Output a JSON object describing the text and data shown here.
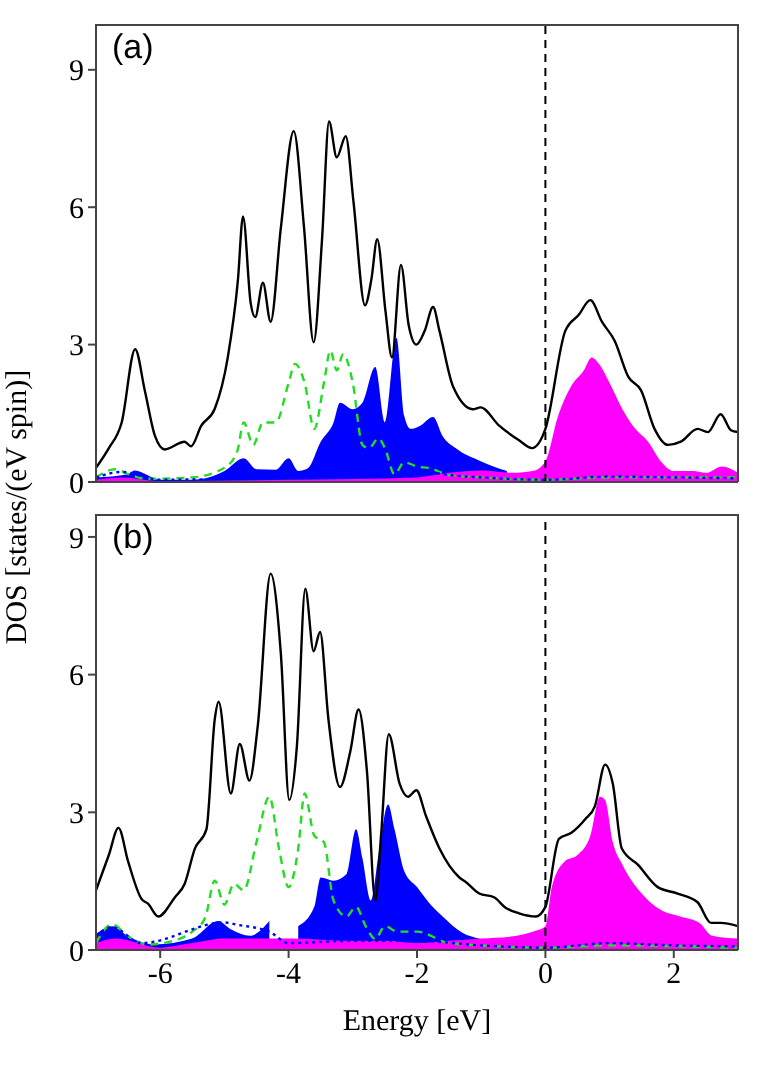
{
  "chart_data": [
    {
      "type": "line",
      "ylabel": "DOS [states/(eV spin)]",
      "annotations": [
        "(a)"
      ],
      "xlim": [
        -7,
        3
      ],
      "xticks": [
        -6,
        -4,
        -2,
        0,
        2
      ],
      "ylim": [
        0,
        10
      ],
      "yticks": [
        0,
        3,
        6,
        9
      ],
      "tick_labels": "y",
      "grid": false,
      "legend": false,
      "ref_lines": [
        {
          "axis": "x",
          "value": 0,
          "color": "#000000",
          "line_style": "dashed"
        }
      ],
      "series": [
        {
          "type": "area",
          "color": "#0000ff",
          "x": [
            -7,
            -6.5,
            -6.4,
            -6,
            -5.5,
            -5,
            -4.7,
            -4.5,
            -4.2,
            -4,
            -3.85,
            -3.7,
            -3.5,
            -3.3,
            -3.2,
            -3,
            -2.85,
            -2.65,
            -2.5,
            -2.32,
            -2.2,
            -2.1,
            -1.95,
            -1.75,
            -1.6,
            -1.4,
            -1,
            -0.6
          ],
          "values": [
            0.1,
            0.17,
            0.25,
            0.05,
            0.05,
            0.24,
            0.52,
            0.28,
            0.27,
            0.52,
            0.24,
            0.3,
            0.88,
            1.3,
            1.73,
            1.59,
            1.73,
            2.51,
            1.3,
            3.15,
            1.45,
            1.16,
            1.23,
            1.42,
            1,
            0.74,
            0.45,
            0.24
          ]
        },
        {
          "type": "area",
          "color": "#ff00ff",
          "x": [
            -7,
            -6.6,
            -6,
            -4,
            -2,
            -1.5,
            -1,
            -0.5,
            -0.2,
            0,
            0.2,
            0.4,
            0.6,
            0.72,
            0.85,
            1,
            1.2,
            1.4,
            1.6,
            1.8,
            2,
            2.3,
            2.5,
            2.75,
            3
          ],
          "values": [
            0.05,
            0.1,
            0.02,
            0.05,
            0.1,
            0.2,
            0.25,
            0.2,
            0.24,
            0.45,
            1.45,
            2.09,
            2.44,
            2.72,
            2.55,
            2.16,
            1.59,
            1.16,
            0.88,
            0.45,
            0.24,
            0.24,
            0.2,
            0.34,
            0.2
          ]
        },
        {
          "type": "line",
          "color": "#22dd22",
          "line_style": "dashed",
          "x": [
            -7,
            -6.7,
            -6.5,
            -6.2,
            -5.5,
            -5,
            -4.8,
            -4.7,
            -4.55,
            -4.4,
            -4.2,
            -4,
            -3.9,
            -3.75,
            -3.6,
            -3.45,
            -3.35,
            -3.25,
            -3.15,
            -3,
            -2.85,
            -2.75,
            -2.6,
            -2.5,
            -2.35,
            -2.2,
            -2,
            -1.8,
            -1.5,
            -1,
            0,
            1,
            3
          ],
          "values": [
            0.1,
            0.28,
            0.17,
            0.07,
            0.1,
            0.31,
            0.67,
            1.3,
            0.81,
            1.3,
            1.3,
            2.16,
            2.58,
            2.16,
            1.16,
            2.16,
            2.87,
            2.44,
            2.79,
            2.16,
            0.81,
            0.74,
            0.95,
            0.74,
            0.17,
            0.43,
            0.34,
            0.3,
            0.15,
            0.1,
            0.05,
            0.1,
            0.1
          ]
        },
        {
          "type": "line",
          "color": "#0000ff",
          "line_style": "dotted",
          "x": [
            -7,
            -6.6,
            -6,
            -4,
            -2.5,
            -2,
            -1.5,
            -1,
            0,
            1,
            2,
            3
          ],
          "values": [
            0.1,
            0.22,
            0.05,
            0.1,
            0.15,
            0.25,
            0.15,
            0.1,
            0.05,
            0.12,
            0.1,
            0.08
          ]
        },
        {
          "type": "line",
          "color": "#000000",
          "line_style": "solid",
          "x": [
            -7,
            -6.8,
            -6.6,
            -6.39,
            -6.24,
            -6.08,
            -5.93,
            -5.62,
            -5.52,
            -5.36,
            -5.15,
            -4.95,
            -4.79,
            -4.71,
            -4.59,
            -4.52,
            -4.4,
            -4.28,
            -4.12,
            -3.92,
            -3.76,
            -3.61,
            -3.48,
            -3.37,
            -3.25,
            -3.11,
            -2.99,
            -2.81,
            -2.71,
            -2.62,
            -2.49,
            -2.39,
            -2.25,
            -2.13,
            -2.01,
            -1.88,
            -1.75,
            -1.65,
            -1.44,
            -1.13,
            -1.01,
            -0.72,
            -0.41,
            -0.21,
            0,
            0.31,
            0.52,
            0.7,
            0.88,
            1.08,
            1.29,
            1.49,
            1.7,
            1.91,
            2.11,
            2.37,
            2.53,
            2.73,
            2.89,
            3
          ],
          "values": [
            0.31,
            0.74,
            1.3,
            2.9,
            2,
            1,
            0.71,
            0.88,
            0.78,
            1.23,
            1.6,
            2.7,
            4.4,
            5.8,
            3.9,
            3.6,
            4.35,
            3.5,
            5.56,
            7.66,
            5.56,
            3.05,
            5.28,
            7.87,
            7.09,
            7.55,
            6.13,
            3.86,
            4.43,
            5.3,
            3.72,
            2.72,
            4.74,
            3.43,
            3,
            3.3,
            3.82,
            3.3,
            2.09,
            1.59,
            1.63,
            1.23,
            0.91,
            0.74,
            1.16,
            3.3,
            3.65,
            3.97,
            3.5,
            3.08,
            2.3,
            2,
            1.16,
            0.81,
            0.88,
            1.16,
            1.09,
            1.48,
            1.13,
            1.09
          ]
        }
      ]
    },
    {
      "type": "line",
      "xlabel": "Energy [eV]",
      "annotations": [
        "(b)"
      ],
      "xlim": [
        -7,
        3
      ],
      "xticks": [
        -6,
        -4,
        -2,
        0,
        2
      ],
      "ylim": [
        0,
        9.5
      ],
      "yticks": [
        0,
        3,
        6,
        9
      ],
      "grid": false,
      "legend": false,
      "ref_lines": [
        {
          "axis": "x",
          "value": 0,
          "color": "#000000",
          "line_style": "dashed"
        }
      ],
      "series": [
        {
          "type": "area",
          "color": "#0000ff",
          "x": [
            -7,
            -6.75,
            -6.5,
            -6.1,
            -5.5,
            -5.1,
            -4.9,
            -4.6,
            -4.3,
            -4,
            -3.85,
            -3.6,
            -3.5,
            -3.3,
            -3.1,
            -2.95,
            -2.85,
            -2.72,
            -2.6,
            -2.45,
            -2.35,
            -2.2,
            -2,
            -1.8,
            -1.6,
            -1.3,
            -1
          ],
          "values": [
            0.35,
            0.52,
            0.3,
            0.12,
            0.25,
            0.63,
            0.45,
            0.31,
            0.63,
            null,
            0.52,
            0.94,
            1.58,
            1.51,
            1.65,
            2.63,
            2,
            1.08,
            2.07,
            3.17,
            2.63,
            1.72,
            1.37,
            1.01,
            0.73,
            0.38,
            0.24
          ]
        },
        {
          "type": "area",
          "color": "#ff00ff",
          "x": [
            -7,
            -6.7,
            -6,
            -5.5,
            -5,
            -4,
            -3,
            -2.5,
            -2,
            -1.5,
            -1,
            -0.5,
            -0.2,
            0,
            0.1,
            0.3,
            0.5,
            0.7,
            0.85,
            0.93,
            1.05,
            1.2,
            1.5,
            1.8,
            2.1,
            2.4,
            2.6,
            3
          ],
          "values": [
            0.15,
            0.25,
            0.05,
            0.15,
            0.25,
            0.25,
            0.2,
            0.2,
            0.15,
            0.2,
            0.25,
            0.3,
            0.4,
            0.52,
            1.37,
            1.93,
            2.07,
            2.49,
            3.34,
            3.27,
            2.35,
            1.86,
            1.23,
            0.87,
            0.73,
            0.59,
            0.31,
            0.25
          ]
        },
        {
          "type": "line",
          "color": "#22dd22",
          "line_style": "dashed",
          "x": [
            -7,
            -6.75,
            -6.5,
            -6.2,
            -5.8,
            -5.5,
            -5.3,
            -5.15,
            -5,
            -4.85,
            -4.7,
            -4.5,
            -4.3,
            -4.15,
            -4,
            -3.85,
            -3.75,
            -3.6,
            -3.45,
            -3.3,
            -3.1,
            -2.95,
            -2.8,
            -2.65,
            -2.5,
            -2.3,
            -2,
            -1.5,
            -1,
            0,
            1,
            3
          ],
          "values": [
            0.15,
            0.56,
            0.3,
            0.12,
            0.2,
            0.4,
            0.7,
            1.51,
            0.99,
            1.44,
            1.3,
            2.35,
            3.34,
            2.21,
            1.37,
            2.21,
            3.41,
            2.49,
            2.35,
            1.08,
            0.73,
            0.94,
            0.52,
            0.24,
            0.52,
            0.4,
            0.4,
            0.15,
            0.1,
            0.05,
            0.1,
            0.05
          ]
        },
        {
          "type": "line",
          "color": "#0000ff",
          "line_style": "dotted",
          "x": [
            -7,
            -6.75,
            -6.3,
            -5,
            -4.8,
            -4.3,
            -4,
            -3,
            -2,
            -1,
            0,
            1,
            2,
            3
          ],
          "values": [
            0.3,
            0.5,
            0.15,
            0.6,
            0.55,
            0.4,
            0.15,
            0.2,
            0.2,
            0.1,
            0.05,
            0.15,
            0.1,
            0.08
          ]
        },
        {
          "type": "line",
          "color": "#000000",
          "line_style": "solid",
          "x": [
            -7,
            -6.8,
            -6.65,
            -6.5,
            -6.29,
            -6.19,
            -6.03,
            -5.77,
            -5.62,
            -5.46,
            -5.28,
            -5.15,
            -5.09,
            -4.9,
            -4.76,
            -4.61,
            -4.48,
            -4.28,
            -4.12,
            -3.99,
            -3.87,
            -3.74,
            -3.61,
            -3.51,
            -3.38,
            -3.2,
            -3.04,
            -2.91,
            -2.78,
            -2.65,
            -2.56,
            -2.44,
            -2.27,
            -2.14,
            -2.01,
            -1.86,
            -1.65,
            -1.34,
            -1.24,
            -1.03,
            -0.8,
            -0.62,
            -0.41,
            -0.15,
            0,
            0.21,
            0.41,
            0.62,
            0.77,
            0.93,
            1.05,
            1.19,
            1.44,
            1.75,
            2.06,
            2.37,
            2.58,
            2.73,
            3
          ],
          "values": [
            1.3,
            2.07,
            2.66,
            1.93,
            1.11,
            1.01,
            0.73,
            1.15,
            1.44,
            2.21,
            2.63,
            5.03,
            5.41,
            3.41,
            4.49,
            3.69,
            4.89,
            8.2,
            6.44,
            3.27,
            4.46,
            7.87,
            6.51,
            6.93,
            5.03,
            3.55,
            4.32,
            5.24,
            3.9,
            1.08,
            2.49,
            4.7,
            3.62,
            3.34,
            3.48,
            2.92,
            2.21,
            1.58,
            1.48,
            1.23,
            1.15,
            0.92,
            0.8,
            0.73,
            0.94,
            2.42,
            2.56,
            2.85,
            3.13,
            4.04,
            3.62,
            2.21,
            1.86,
            1.37,
            1.23,
            1.04,
            0.59,
            0.59,
            0.52
          ]
        }
      ]
    }
  ]
}
